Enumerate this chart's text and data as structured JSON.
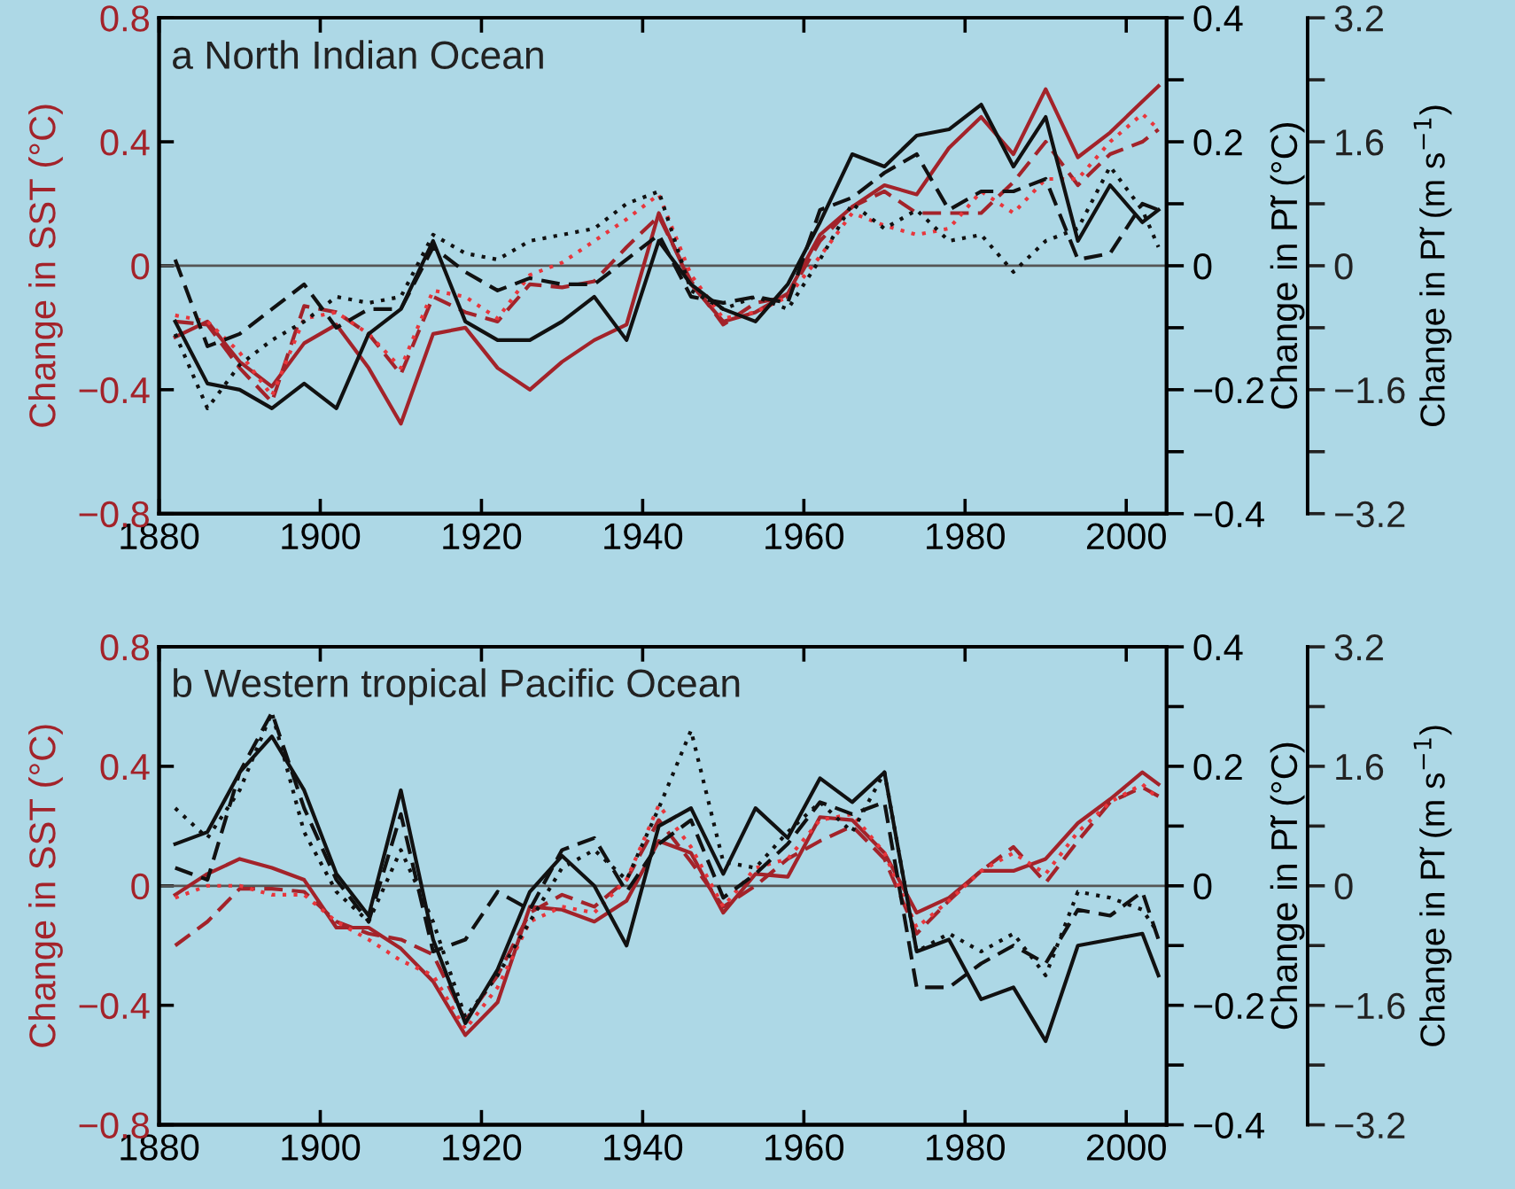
{
  "chart_data": [
    {
      "type": "line",
      "title": "a North Indian Ocean",
      "ylabel": "Change in SST (°C)",
      "y2label": "Change in P̃I (°C)",
      "y3label": "Change in P̃I (m s$^{−1}$)",
      "x": [
        1882,
        1886,
        1890,
        1894,
        1898,
        1902,
        1906,
        1910,
        1914,
        1918,
        1922,
        1926,
        1930,
        1934,
        1938,
        1942,
        1946,
        1950,
        1954,
        1958,
        1962,
        1966,
        1970,
        1974,
        1978,
        1982,
        1986,
        1990,
        1994,
        1998,
        2002,
        2004
      ],
      "xlim": [
        1880,
        2005
      ],
      "xticks": [
        1880,
        1900,
        1920,
        1940,
        1960,
        1980,
        2000
      ],
      "ylim": [
        -0.8,
        0.8
      ],
      "yticks": [
        -0.8,
        -0.4,
        0,
        0.4,
        0.8
      ],
      "y2lim": [
        -0.4,
        0.4
      ],
      "y2ticks": [
        -0.4,
        {
          "value": -0.3,
          "label": null
        },
        -0.2,
        {
          "value": -0.1,
          "label": null
        },
        0,
        {
          "value": 0.1,
          "label": null
        },
        0.2,
        {
          "value": 0.3,
          "label": null
        },
        0.4
      ],
      "y3lim": [
        -3.2,
        3.2
      ],
      "y3ticks": [
        -3.2,
        {
          "value": -2.4,
          "label": null
        },
        -1.6,
        {
          "value": -0.8,
          "label": null
        },
        0,
        {
          "value": 0.8,
          "label": null
        },
        1.6,
        {
          "value": 2.4,
          "label": null
        },
        3.2
      ],
      "ref_lines": [
        {
          "axis": "y",
          "value": 0,
          "color": "#555555"
        }
      ],
      "series": [
        {
          "color": "#a3232a",
          "line_style": "solid",
          "axis": "y",
          "values": [
            -0.23,
            -0.18,
            -0.31,
            -0.39,
            -0.25,
            -0.19,
            -0.33,
            -0.51,
            -0.22,
            -0.2,
            -0.33,
            -0.4,
            -0.31,
            -0.24,
            -0.19,
            0.17,
            -0.06,
            -0.18,
            -0.15,
            -0.09,
            0.1,
            0.19,
            0.26,
            0.23,
            0.38,
            0.48,
            0.36,
            0.57,
            0.35,
            0.43,
            0.53,
            0.58
          ]
        },
        {
          "color": "#a3232a",
          "line_style": "dashed",
          "axis": "y",
          "values": [
            -0.18,
            -0.19,
            -0.33,
            -0.44,
            -0.13,
            -0.15,
            -0.22,
            -0.35,
            -0.1,
            -0.15,
            -0.18,
            -0.06,
            -0.07,
            -0.05,
            0.06,
            0.16,
            -0.05,
            -0.19,
            -0.12,
            -0.1,
            0.08,
            0.19,
            0.24,
            0.17,
            0.17,
            0.17,
            0.27,
            0.4,
            0.26,
            0.36,
            0.4,
            0.44
          ]
        },
        {
          "color": "#e8363c",
          "line_style": "dotted",
          "axis": "y",
          "values": [
            -0.16,
            -0.18,
            -0.28,
            -0.42,
            -0.17,
            -0.15,
            -0.22,
            -0.33,
            -0.08,
            -0.1,
            -0.17,
            -0.03,
            0.01,
            0.08,
            0.15,
            0.23,
            -0.03,
            -0.17,
            -0.15,
            -0.1,
            0.03,
            0.17,
            0.13,
            0.1,
            0.12,
            0.24,
            0.17,
            0.28,
            0.28,
            0.4,
            0.49,
            0.44
          ]
        },
        {
          "color": "#111111",
          "line_style": "solid",
          "axis": "y2",
          "values": [
            -0.09,
            -0.19,
            -0.2,
            -0.23,
            -0.19,
            -0.23,
            -0.11,
            -0.07,
            0.04,
            -0.09,
            -0.12,
            -0.12,
            -0.09,
            -0.05,
            -0.12,
            0.04,
            -0.03,
            -0.07,
            -0.09,
            -0.03,
            0.07,
            0.18,
            0.16,
            0.21,
            0.22,
            0.26,
            0.16,
            0.24,
            0.04,
            0.13,
            0.07,
            0.09
          ]
        },
        {
          "color": "#111111",
          "line_style": "dashed",
          "axis": "y2",
          "values": [
            0.01,
            -0.13,
            -0.11,
            -0.07,
            -0.03,
            -0.1,
            -0.07,
            -0.07,
            0.03,
            -0.01,
            -0.04,
            -0.02,
            -0.03,
            -0.03,
            0.01,
            0.05,
            -0.05,
            -0.06,
            -0.05,
            -0.06,
            0.09,
            0.11,
            0.15,
            0.18,
            0.09,
            0.12,
            0.12,
            0.14,
            0.01,
            0.02,
            0.1,
            0.09
          ]
        },
        {
          "color": "#111111",
          "line_style": "dotted",
          "axis": "y2",
          "values": [
            -0.11,
            -0.23,
            -0.16,
            -0.12,
            -0.09,
            -0.05,
            -0.06,
            -0.05,
            0.05,
            0.02,
            0.01,
            0.04,
            0.05,
            0.06,
            0.1,
            0.12,
            -0.04,
            -0.07,
            -0.05,
            -0.07,
            0.01,
            0.1,
            0.06,
            0.09,
            0.04,
            0.05,
            -0.01,
            0.04,
            0.06,
            0.16,
            0.09,
            0.03
          ]
        }
      ]
    },
    {
      "type": "line",
      "title": "b Western tropical Pacific Ocean",
      "ylabel": "Change in SST (°C)",
      "y2label": "Change in P̃I (°C)",
      "y3label": "Change in P̃I (m s$^{−1}$)",
      "x": [
        1882,
        1886,
        1890,
        1894,
        1898,
        1902,
        1906,
        1910,
        1914,
        1918,
        1922,
        1926,
        1930,
        1934,
        1938,
        1942,
        1946,
        1950,
        1954,
        1958,
        1962,
        1966,
        1970,
        1974,
        1978,
        1982,
        1986,
        1990,
        1994,
        1998,
        2002,
        2004
      ],
      "xlim": [
        1880,
        2005
      ],
      "xticks": [
        1880,
        1900,
        1920,
        1940,
        1960,
        1980,
        2000
      ],
      "ylim": [
        -0.8,
        0.8
      ],
      "yticks": [
        -0.8,
        -0.4,
        0,
        0.4,
        0.8
      ],
      "y2lim": [
        -0.4,
        0.4
      ],
      "y2ticks": [
        -0.4,
        {
          "value": -0.3,
          "label": null
        },
        -0.2,
        {
          "value": -0.1,
          "label": null
        },
        0,
        {
          "value": 0.1,
          "label": null
        },
        0.2,
        {
          "value": 0.3,
          "label": null
        },
        0.4
      ],
      "y3lim": [
        -3.2,
        3.2
      ],
      "y3ticks": [
        -3.2,
        {
          "value": -2.4,
          "label": null
        },
        -1.6,
        {
          "value": -0.8,
          "label": null
        },
        0,
        {
          "value": 0.8,
          "label": null
        },
        1.6,
        {
          "value": 2.4,
          "label": null
        },
        3.2
      ],
      "ref_lines": [
        {
          "axis": "y",
          "value": 0,
          "color": "#555555"
        }
      ],
      "series": [
        {
          "color": "#a3232a",
          "line_style": "solid",
          "axis": "y",
          "values": [
            -0.03,
            0.04,
            0.09,
            0.06,
            0.02,
            -0.14,
            -0.14,
            -0.21,
            -0.32,
            -0.5,
            -0.39,
            -0.07,
            -0.08,
            -0.12,
            -0.05,
            0.15,
            0.11,
            -0.09,
            0.04,
            0.03,
            0.23,
            0.22,
            0.11,
            -0.09,
            -0.04,
            0.05,
            0.05,
            0.09,
            0.21,
            0.29,
            0.38,
            0.34
          ]
        },
        {
          "color": "#a3232a",
          "line_style": "dashed",
          "axis": "y",
          "values": [
            -0.2,
            -0.12,
            -0.01,
            -0.01,
            -0.02,
            -0.12,
            -0.16,
            -0.18,
            -0.23,
            -0.45,
            -0.3,
            -0.09,
            -0.03,
            -0.07,
            0.02,
            0.22,
            0.08,
            -0.07,
            0,
            0.09,
            0.15,
            0.2,
            0.09,
            -0.16,
            -0.05,
            0.05,
            0.13,
            0.01,
            0.15,
            0.28,
            0.33,
            0.3
          ]
        },
        {
          "color": "#e8363c",
          "line_style": "dotted",
          "axis": "y",
          "values": [
            -0.04,
            0,
            0,
            -0.03,
            -0.03,
            -0.12,
            -0.18,
            -0.25,
            -0.3,
            -0.48,
            -0.34,
            -0.12,
            -0.07,
            -0.09,
            0.02,
            0.27,
            0.13,
            -0.07,
            0.06,
            0.09,
            0.22,
            0.24,
            0.11,
            -0.14,
            -0.05,
            0.05,
            0.11,
            0.04,
            0.18,
            0.28,
            0.34,
            0.29
          ]
        },
        {
          "color": "#111111",
          "line_style": "solid",
          "axis": "y2",
          "values": [
            0.07,
            0.09,
            0.19,
            0.25,
            0.16,
            0.02,
            -0.05,
            0.16,
            -0.09,
            -0.23,
            -0.14,
            -0.01,
            0.05,
            0,
            -0.1,
            0.1,
            0.13,
            0.02,
            0.13,
            0.08,
            0.18,
            0.14,
            0.19,
            -0.11,
            -0.09,
            -0.19,
            -0.17,
            -0.26,
            -0.1,
            -0.09,
            -0.08,
            -0.15
          ]
        },
        {
          "color": "#111111",
          "line_style": "dashed",
          "axis": "y2",
          "values": [
            0.03,
            0.01,
            0.19,
            0.29,
            0.13,
            0.01,
            -0.06,
            0.12,
            -0.11,
            -0.09,
            -0.01,
            -0.04,
            0.06,
            0.08,
            -0.01,
            0.07,
            0.11,
            -0.02,
            0.02,
            0.07,
            0.14,
            0.12,
            0.14,
            -0.17,
            -0.17,
            -0.13,
            -0.1,
            -0.13,
            -0.04,
            -0.05,
            -0.01,
            -0.09
          ]
        },
        {
          "color": "#111111",
          "line_style": "dotted",
          "axis": "y2",
          "values": [
            0.13,
            0.08,
            0.16,
            0.29,
            0.09,
            -0.01,
            -0.06,
            0.06,
            -0.06,
            -0.22,
            -0.15,
            -0.06,
            0.03,
            0.06,
            0.01,
            0.13,
            0.26,
            0.04,
            0.03,
            0.09,
            0.14,
            0.09,
            0.19,
            -0.11,
            -0.08,
            -0.11,
            -0.08,
            -0.15,
            -0.01,
            -0.02,
            -0.04,
            -0.08
          ]
        }
      ]
    }
  ]
}
